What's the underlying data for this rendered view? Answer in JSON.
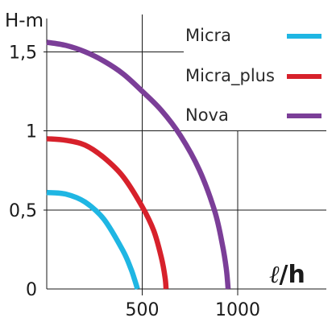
{
  "chart_data": {
    "type": "line",
    "ylabel": "H-m",
    "xlabel_symbol": "ℓ",
    "xlabel_rest": "/h",
    "xlim": [
      0,
      1450
    ],
    "ylim": [
      0,
      1.65
    ],
    "grid": true,
    "x_ticks": [
      {
        "value": 500,
        "label": "500"
      },
      {
        "value": 1000,
        "label": "1000"
      }
    ],
    "y_ticks": [
      {
        "value": 0,
        "label": "0"
      },
      {
        "value": 0.5,
        "label": "0,5"
      },
      {
        "value": 1,
        "label": "1"
      },
      {
        "value": 1.5,
        "label": "1,5"
      }
    ],
    "legend_position": "top-right",
    "series": [
      {
        "name": "Micra",
        "color": "#1fb6e3",
        "x": [
          0,
          100,
          200,
          300,
          400,
          440,
          460,
          475
        ],
        "y": [
          0.61,
          0.6,
          0.55,
          0.44,
          0.24,
          0.13,
          0.06,
          0
        ]
      },
      {
        "name": "Micra_plus",
        "color": "#d7212b",
        "x": [
          0,
          100,
          200,
          300,
          400,
          500,
          560,
          600,
          620,
          625
        ],
        "y": [
          0.95,
          0.94,
          0.91,
          0.83,
          0.71,
          0.52,
          0.37,
          0.2,
          0.07,
          0
        ]
      },
      {
        "name": "Nova",
        "color": "#7b3e98",
        "x": [
          0,
          100,
          200,
          300,
          400,
          500,
          600,
          700,
          800,
          880,
          920,
          940,
          950
        ],
        "y": [
          1.56,
          1.54,
          1.5,
          1.44,
          1.36,
          1.25,
          1.13,
          0.97,
          0.75,
          0.49,
          0.28,
          0.13,
          0
        ]
      }
    ]
  }
}
